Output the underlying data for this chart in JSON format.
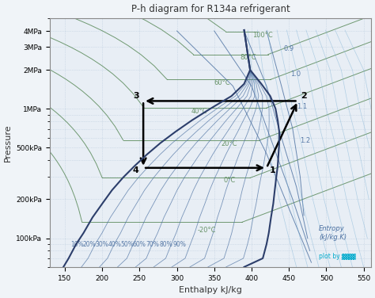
{
  "title": "P-h diagram for R134a refrigerant",
  "xlabel": "Enthalpy kJ/kg",
  "ylabel": "Pressure",
  "background_color": "#f0f4f8",
  "plot_bg_color": "#e8eef5",
  "grid_color": "#c8d4e0",
  "grid_dotted_color": "#b0c4d8",
  "dome_color": "#2c3e6b",
  "isotherm_color": "#5a8a5a",
  "entropy_color": "#4a6fa0",
  "quality_color": "#4a6fa0",
  "cycle_color": "#000000",
  "text_color": "#333333",
  "cycle_points": {
    "1": [
      420,
      350
    ],
    "2": [
      460,
      1150
    ],
    "3": [
      255,
      1150
    ],
    "4": [
      255,
      350
    ]
  },
  "pressure_labels": [
    "4MPa",
    "3MPa",
    "2MPa",
    "1MPa",
    "500kPa",
    "200kPa",
    "100kPa"
  ],
  "pressure_values": [
    4000,
    3000,
    2000,
    1000,
    500,
    200,
    100
  ],
  "temp_labels": [
    "-20°C",
    "0°C",
    "20°C",
    "40°C",
    "60°C",
    "80°C",
    "100°C"
  ],
  "quality_labels": [
    "10%",
    "20%",
    "30%",
    "40%",
    "50%",
    "60%",
    "70%",
    "80%",
    "90%"
  ],
  "entropy_labels": [
    "0.9",
    "1.0",
    "1.1",
    "1.2"
  ],
  "point_labels": [
    "1",
    "2",
    "3",
    "4"
  ],
  "annotation_color": "#1a1a6e",
  "plot_by_text": "plot by",
  "ylim_log": [
    60,
    5000
  ],
  "xlim": [
    130,
    560
  ]
}
